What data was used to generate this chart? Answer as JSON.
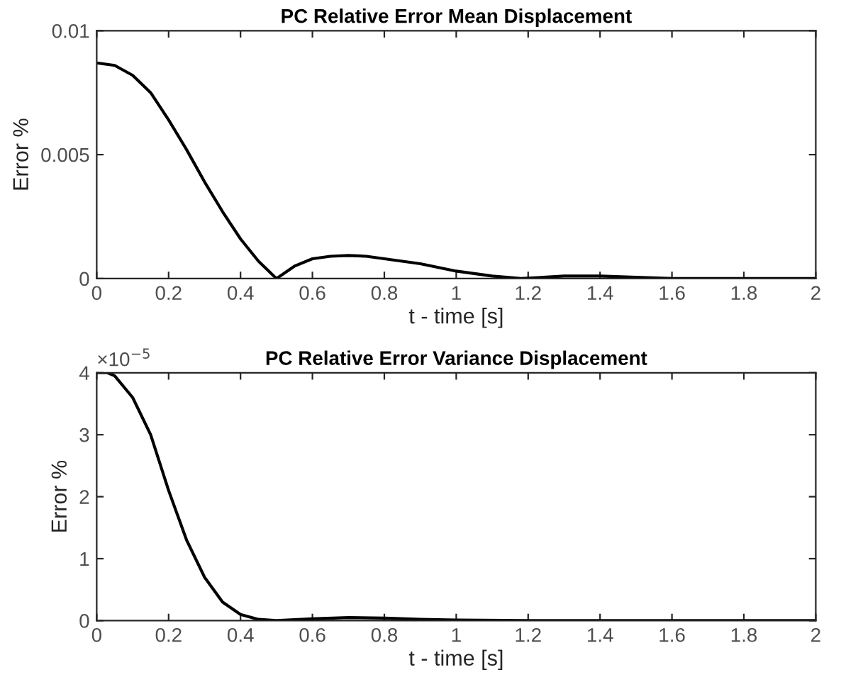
{
  "chart_data": [
    {
      "type": "line",
      "title": "PC Relative Error Mean Displacement",
      "xlabel": "t - time [s]",
      "ylabel": "Error %",
      "x": [
        0,
        0.05,
        0.1,
        0.15,
        0.2,
        0.25,
        0.3,
        0.35,
        0.4,
        0.45,
        0.5,
        0.55,
        0.6,
        0.65,
        0.7,
        0.75,
        0.8,
        0.9,
        1.0,
        1.1,
        1.18,
        1.3,
        1.4,
        1.6,
        1.8,
        2.0
      ],
      "series": [
        {
          "color": "#000000",
          "values": [
            0.0087,
            0.0086,
            0.0082,
            0.0075,
            0.0064,
            0.0052,
            0.0039,
            0.0027,
            0.0016,
            0.0007,
            0.0,
            0.0005,
            0.0008,
            0.0009,
            0.00093,
            0.0009,
            0.0008,
            0.0006,
            0.0003,
            0.0001,
            0.0,
            0.0001,
            0.0001,
            0.0,
            0.0,
            0.0
          ]
        }
      ],
      "xlim": [
        0,
        2
      ],
      "ylim": [
        0,
        0.01
      ],
      "xticks": [
        0,
        0.2,
        0.4,
        0.6,
        0.8,
        1,
        1.2,
        1.4,
        1.6,
        1.8,
        2
      ],
      "yticks": [
        0,
        0.005,
        0.01
      ],
      "grid": false,
      "legend": false
    },
    {
      "type": "line",
      "title": "PC Relative Error Variance Displacement",
      "xlabel": "t - time [s]",
      "ylabel": "Error %",
      "annotations": [
        "×10$^{−5}$"
      ],
      "x": [
        0,
        0.03,
        0.05,
        0.1,
        0.15,
        0.2,
        0.25,
        0.3,
        0.35,
        0.4,
        0.45,
        0.5,
        0.6,
        0.7,
        0.8,
        0.9,
        1.0,
        1.2,
        2.0
      ],
      "series": [
        {
          "color": "#000000",
          "values": [
            4.0,
            4.0,
            3.95,
            3.6,
            3.0,
            2.1,
            1.3,
            0.7,
            0.3,
            0.1,
            0.02,
            0.0,
            0.03,
            0.05,
            0.04,
            0.02,
            0.01,
            0.0,
            0.0
          ]
        }
      ],
      "xlim": [
        0,
        2
      ],
      "ylim": [
        0,
        4
      ],
      "xticks": [
        0,
        0.2,
        0.4,
        0.6,
        0.8,
        1,
        1.2,
        1.4,
        1.6,
        1.8,
        2
      ],
      "yticks": [
        0,
        1,
        2,
        3,
        4
      ],
      "grid": false,
      "legend": false
    }
  ]
}
